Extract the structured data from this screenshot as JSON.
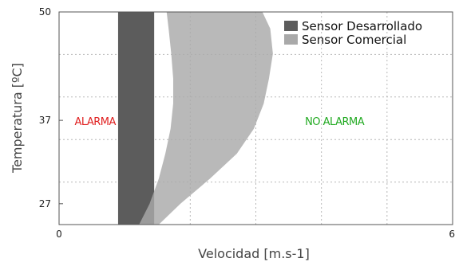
{
  "chart_data": {
    "type": "area",
    "xlabel": "Velocidad [m.s-1]",
    "ylabel": "Temperatura [ºC]",
    "xlim": [
      0,
      6
    ],
    "ylim": [
      24.5,
      50
    ],
    "x_ticks": [
      "0",
      "6"
    ],
    "y_ticks": [
      "27",
      "37",
      "50"
    ],
    "y_tick_values": [
      27,
      37,
      50
    ],
    "grid": true,
    "legend_position": "top-right",
    "colors": {
      "developed": "#5c5c5c",
      "commercial": "#a9a9a9",
      "alarm": "#e02020",
      "no_alarm": "#22aa22"
    },
    "series": [
      {
        "name": "Sensor Desarrollado",
        "band_x_min": 0.9,
        "band_x_max": 1.45,
        "y_range": [
          24.5,
          50
        ]
      },
      {
        "name": "Sensor Comercial",
        "temperature": [
          24.5,
          27,
          30,
          33,
          36,
          39,
          42,
          45,
          48,
          50
        ],
        "x_lower": [
          1.22,
          1.38,
          1.52,
          1.62,
          1.7,
          1.74,
          1.74,
          1.71,
          1.67,
          1.64
        ],
        "x_upper": [
          1.52,
          1.85,
          2.3,
          2.71,
          2.97,
          3.12,
          3.2,
          3.26,
          3.22,
          3.1
        ]
      }
    ],
    "annotations": {
      "alarm": "ALARMA",
      "no_alarm": "NO ALARMA"
    },
    "annotation_positions": {
      "alarm": {
        "x": 0.55,
        "y": 37
      },
      "no_alarm": {
        "x": 4.2,
        "y": 37
      }
    }
  }
}
